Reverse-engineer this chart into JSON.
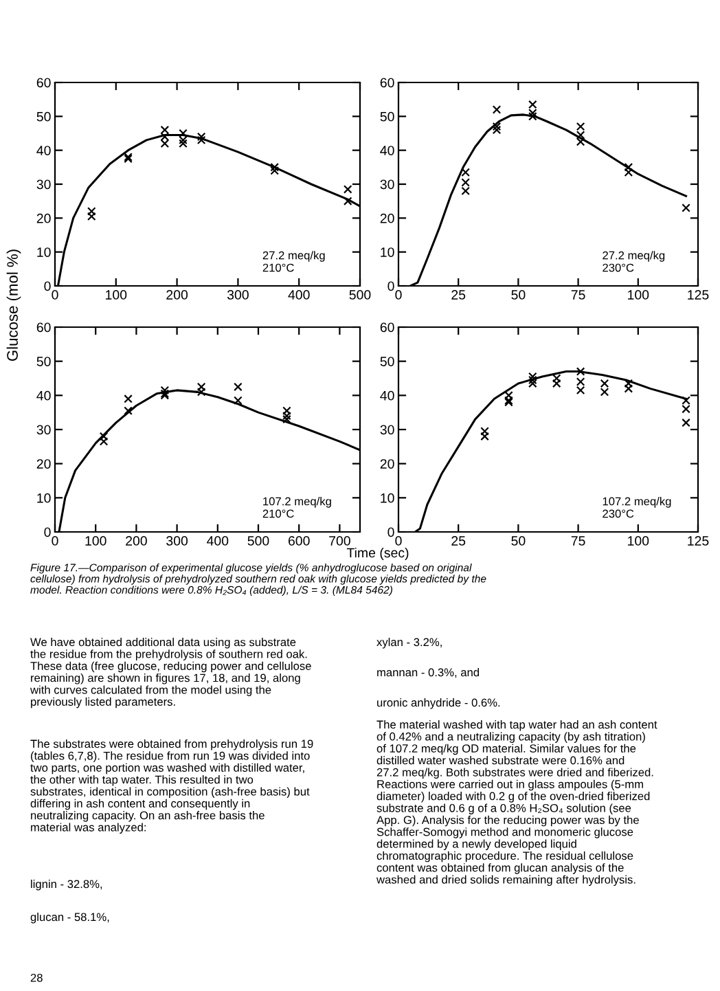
{
  "chart_data": [
    {
      "type": "line",
      "ylabel": "Glucose (mol %)",
      "xlim": [
        0,
        500
      ],
      "xticks": [
        0,
        100,
        200,
        300,
        400,
        500
      ],
      "ylim": [
        0,
        60
      ],
      "yticks": [
        0,
        10,
        20,
        30,
        40,
        50,
        60
      ],
      "grid": false,
      "legend": false,
      "annotations": [
        "27.2 meq/kg\n210°C"
      ],
      "series": [
        {
          "type": "line",
          "color": "#000000",
          "marker": "none",
          "line_style": "solid",
          "x": [
            5,
            15,
            30,
            55,
            90,
            120,
            150,
            180,
            210,
            240,
            300,
            360,
            420,
            480,
            500
          ],
          "values": [
            0,
            10,
            20,
            29,
            36,
            40,
            43,
            44.5,
            44.5,
            43.5,
            39.5,
            35,
            30,
            25.5,
            23.5
          ]
        },
        {
          "type": "scatter",
          "color": "#000000",
          "marker": "cross",
          "x": [
            60,
            60,
            120,
            120,
            180,
            180,
            180,
            210,
            210,
            210,
            240,
            240,
            360,
            360,
            480,
            480
          ],
          "values": [
            22,
            20.5,
            38,
            37.5,
            46,
            44,
            42,
            45,
            43,
            42,
            44,
            43,
            35,
            34,
            28.5,
            25
          ]
        }
      ]
    },
    {
      "type": "line",
      "xlim": [
        0,
        125
      ],
      "xticks": [
        0,
        25,
        50,
        75,
        100,
        125
      ],
      "ylim": [
        0,
        60
      ],
      "yticks": [
        0,
        10,
        20,
        30,
        40,
        50,
        60
      ],
      "grid": false,
      "legend": false,
      "annotations": [
        "27.2 meq/kg\n230°C"
      ],
      "series": [
        {
          "type": "line",
          "color": "#000000",
          "marker": "none",
          "line_style": "solid",
          "x": [
            5,
            8,
            12,
            17,
            22,
            27,
            32,
            37,
            42,
            47,
            52,
            57,
            62,
            70,
            80,
            90,
            100,
            110,
            120
          ],
          "values": [
            0,
            1,
            8,
            17,
            27,
            35,
            41,
            45.5,
            48.5,
            50.3,
            50.5,
            50,
            48.5,
            46,
            42,
            37.5,
            33,
            29.5,
            26.5
          ]
        },
        {
          "type": "scatter",
          "color": "#000000",
          "marker": "cross",
          "x": [
            28,
            28,
            28,
            41,
            41,
            41,
            56,
            56,
            56,
            76,
            76,
            76,
            96,
            96,
            120
          ],
          "values": [
            33.5,
            30.5,
            28,
            52,
            47,
            46,
            53.5,
            51,
            50,
            47,
            44.5,
            42.5,
            35,
            33.5,
            23
          ]
        }
      ]
    },
    {
      "type": "line",
      "xlim": [
        0,
        750
      ],
      "xticks": [
        0,
        100,
        200,
        300,
        400,
        500,
        600,
        700
      ],
      "ylim": [
        0,
        60
      ],
      "yticks": [
        0,
        10,
        20,
        30,
        40,
        50,
        60
      ],
      "grid": false,
      "legend": false,
      "annotations": [
        "107.2 meq/kg\n210°C"
      ],
      "series": [
        {
          "type": "line",
          "color": "#000000",
          "marker": "none",
          "line_style": "solid",
          "x": [
            10,
            25,
            50,
            100,
            150,
            200,
            250,
            300,
            350,
            400,
            450,
            500,
            600,
            700,
            750
          ],
          "values": [
            0,
            10,
            18,
            26,
            32,
            37,
            40.5,
            41.5,
            41,
            39.5,
            37.5,
            35,
            31,
            26.5,
            24
          ]
        },
        {
          "type": "scatter",
          "color": "#000000",
          "marker": "cross",
          "x": [
            120,
            120,
            180,
            180,
            270,
            270,
            270,
            360,
            360,
            450,
            450,
            570,
            570,
            570
          ],
          "values": [
            28,
            26.5,
            39,
            35.5,
            41.5,
            40.5,
            40,
            42.5,
            41,
            42.5,
            38.5,
            35.5,
            34,
            33
          ]
        }
      ]
    },
    {
      "type": "line",
      "xlabel": "Time (sec)",
      "xlim": [
        0,
        125
      ],
      "xticks": [
        0,
        25,
        50,
        75,
        100,
        125
      ],
      "ylim": [
        0,
        60
      ],
      "yticks": [
        0,
        10,
        20,
        30,
        40,
        50,
        60
      ],
      "grid": false,
      "legend": false,
      "annotations": [
        "107.2 meq/kg\n230°C"
      ],
      "series": [
        {
          "type": "line",
          "color": "#000000",
          "marker": "none",
          "line_style": "solid",
          "x": [
            7,
            9,
            12,
            18,
            25,
            32,
            40,
            50,
            60,
            70,
            75,
            85,
            95,
            105,
            120
          ],
          "values": [
            0,
            1,
            8,
            17,
            25,
            33,
            39,
            43.5,
            45.5,
            47,
            47,
            46,
            44.5,
            42,
            39
          ]
        },
        {
          "type": "scatter",
          "color": "#000000",
          "marker": "cross",
          "x": [
            36,
            36,
            46,
            46,
            46,
            56,
            56,
            56,
            66,
            66,
            76,
            76,
            76,
            86,
            86,
            96,
            96,
            120,
            120,
            120
          ],
          "values": [
            29.5,
            28,
            40,
            38.5,
            38,
            45.5,
            44.5,
            43.5,
            45,
            43.5,
            47,
            44,
            41.5,
            43.5,
            41,
            43.5,
            42,
            38.5,
            36,
            32
          ]
        }
      ]
    },
    {
      "type": "other",
      "annotations": [
        "Figure 17.—Comparison of experimental glucose yields (% anhydroglucose based on original\ncellulose) from hydrolysis of prehydrolyzed southern red oak with glucose yields predicted by the\nmodel. Reaction conditions were 0.8% H₂SO₄ (added), L/S = 3. (ML84 5462)",
        "We have obtained additional data using as substrate\nthe residue from the prehydrolysis of southern red oak.\nThese data (free glucose, reducing power and cellulose\nremaining) are shown in figures 17, 18, and 19, along\nwith curves calculated from the model using the\npreviously listed parameters.",
        "The substrates were obtained from prehydrolysis run 19\n(tables 6,7,8). The residue from run 19 was divided into\ntwo parts, one portion was washed with distilled water,\nthe other with tap water. This resulted in two\nsubstrates, identical in composition (ash-free basis) but\ndiffering in ash content and consequently in\nneutralizing capacity. On an ash-free basis the\nmaterial was analyzed:",
        "lignin - 32.8%,",
        "glucan - 58.1%,",
        "xylan - 3.2%,",
        "mannan - 0.3%, and",
        "uronic anhydride - 0.6%.",
        "The material washed with tap water had an ash content\nof 0.42% and a neutralizing capacity (by ash titration)\nof 107.2 meq/kg OD material. Similar values for the\ndistilled water washed substrate were 0.16% and\n27.2 meq/kg. Both substrates were dried and fiberized.\nReactions were carried out in glass ampoules (5-mm\ndiameter) loaded with 0.2 g of the oven-dried fiberized\nsubstrate and 0.6 g of a 0.8% H₂SO₄ solution (see\nApp. G). Analysis for the reducing power was by the\nSchaffer-Somogyi method and monomeric glucose\ndetermined by a newly developed liquid\nchromatographic procedure. The residual cellulose\ncontent was obtained from glucan analysis of the\nwashed and dried solids remaining after hydrolysis.",
        "28"
      ]
    }
  ]
}
